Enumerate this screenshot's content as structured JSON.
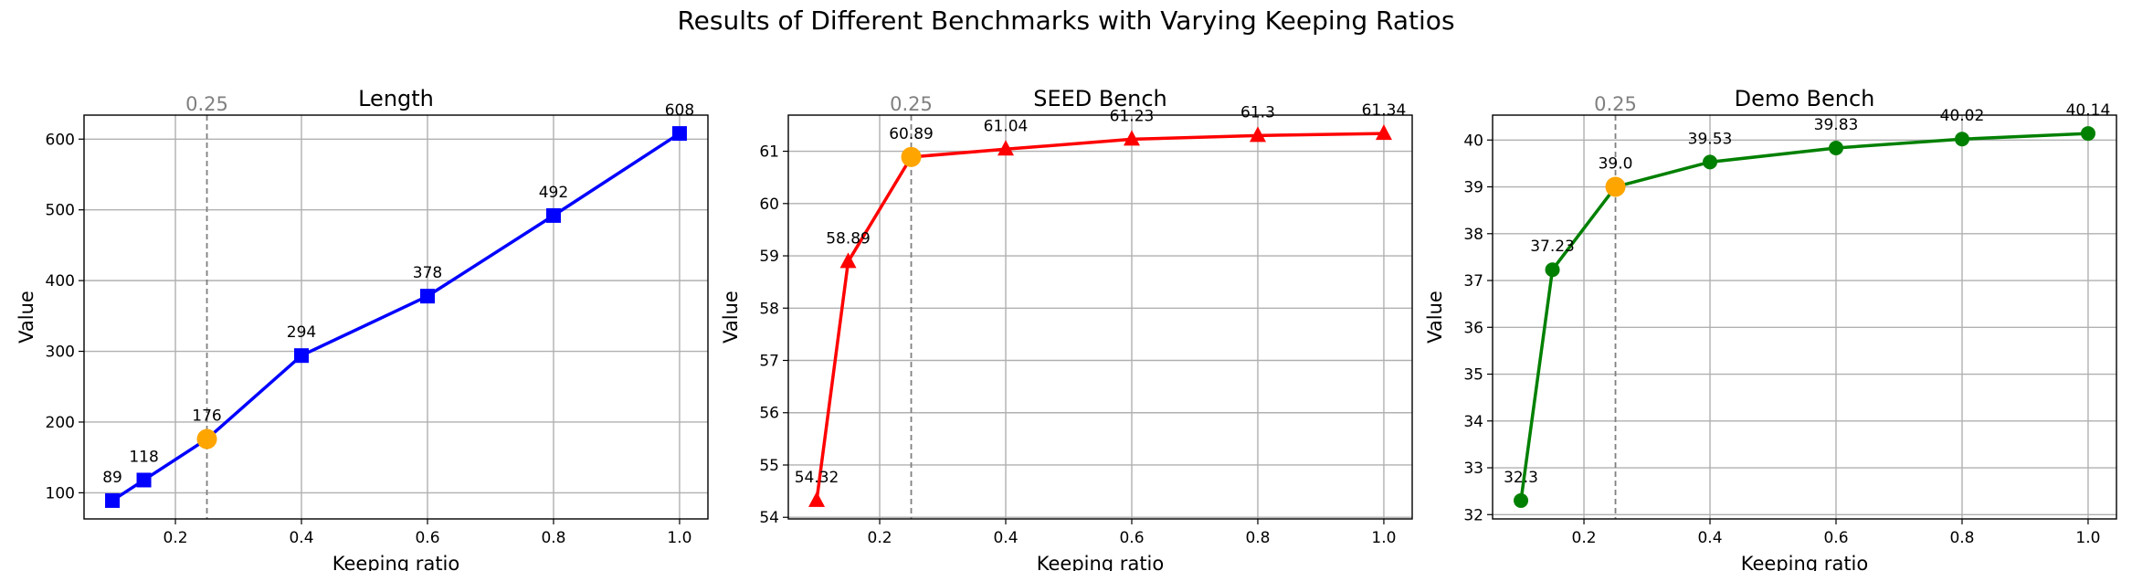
{
  "figure": {
    "suptitle": "Results of Different Benchmarks with Varying Keeping Ratios"
  },
  "chart_data": [
    {
      "type": "line",
      "title": "Length",
      "xlabel": "Keeping ratio",
      "ylabel": "Value",
      "x": [
        0.1,
        0.15,
        0.25,
        0.4,
        0.6,
        0.8,
        1.0
      ],
      "series": [
        {
          "values": [
            89,
            118,
            176,
            294,
            378,
            492,
            608
          ],
          "color": "#0000ff",
          "marker": "square"
        }
      ],
      "point_labels": [
        "89",
        "118",
        "176",
        "294",
        "378",
        "492",
        "608"
      ],
      "highlight": {
        "x": 0.25,
        "y": 176,
        "color": "#ffa500"
      },
      "vline": {
        "x": 0.25,
        "label": "0.25",
        "color": "#808080"
      },
      "xlim": [
        0.055,
        1.045
      ],
      "ylim": [
        63.05,
        633.95
      ],
      "xticks": [
        0.2,
        0.4,
        0.6,
        0.8,
        1.0
      ],
      "xtick_labels": [
        "0.2",
        "0.4",
        "0.6",
        "0.8",
        "1.0"
      ],
      "yticks": [
        100,
        200,
        300,
        400,
        500,
        600
      ],
      "ytick_labels": [
        "100",
        "200",
        "300",
        "400",
        "500",
        "600"
      ],
      "grid": true
    },
    {
      "type": "line",
      "title": "SEED Bench",
      "xlabel": "Keeping ratio",
      "ylabel": "Value",
      "x": [
        0.1,
        0.15,
        0.25,
        0.4,
        0.6,
        0.8,
        1.0
      ],
      "series": [
        {
          "values": [
            54.32,
            58.89,
            60.89,
            61.04,
            61.23,
            61.3,
            61.34
          ],
          "color": "#ff0000",
          "marker": "triangle"
        }
      ],
      "point_labels": [
        "54.32",
        "58.89",
        "60.89",
        "61.04",
        "61.23",
        "61.3",
        "61.34"
      ],
      "highlight": {
        "x": 0.25,
        "y": 60.89,
        "color": "#ffa500"
      },
      "vline": {
        "x": 0.25,
        "label": "0.25",
        "color": "#808080"
      },
      "xlim": [
        0.055,
        1.045
      ],
      "ylim": [
        53.969,
        61.691
      ],
      "xticks": [
        0.2,
        0.4,
        0.6,
        0.8,
        1.0
      ],
      "xtick_labels": [
        "0.2",
        "0.4",
        "0.6",
        "0.8",
        "1.0"
      ],
      "yticks": [
        54,
        55,
        56,
        57,
        58,
        59,
        60,
        61
      ],
      "ytick_labels": [
        "54",
        "55",
        "56",
        "57",
        "58",
        "59",
        "60",
        "61"
      ],
      "grid": true
    },
    {
      "type": "line",
      "title": "Demo Bench",
      "xlabel": "Keeping ratio",
      "ylabel": "Value",
      "x": [
        0.1,
        0.15,
        0.25,
        0.4,
        0.6,
        0.8,
        1.0
      ],
      "series": [
        {
          "values": [
            32.3,
            37.23,
            39.0,
            39.53,
            39.83,
            40.02,
            40.14
          ],
          "color": "#008000",
          "marker": "circle"
        }
      ],
      "point_labels": [
        "32.3",
        "37.23",
        "39.0",
        "39.53",
        "39.83",
        "40.02",
        "40.14"
      ],
      "highlight": {
        "x": 0.25,
        "y": 39.0,
        "color": "#ffa500"
      },
      "vline": {
        "x": 0.25,
        "label": "0.25",
        "color": "#808080"
      },
      "xlim": [
        0.055,
        1.045
      ],
      "ylim": [
        31.908,
        40.532
      ],
      "xticks": [
        0.2,
        0.4,
        0.6,
        0.8,
        1.0
      ],
      "xtick_labels": [
        "0.2",
        "0.4",
        "0.6",
        "0.8",
        "1.0"
      ],
      "yticks": [
        32,
        33,
        34,
        35,
        36,
        37,
        38,
        39,
        40
      ],
      "ytick_labels": [
        "32",
        "33",
        "34",
        "35",
        "36",
        "37",
        "38",
        "39",
        "40"
      ],
      "grid": true
    }
  ]
}
